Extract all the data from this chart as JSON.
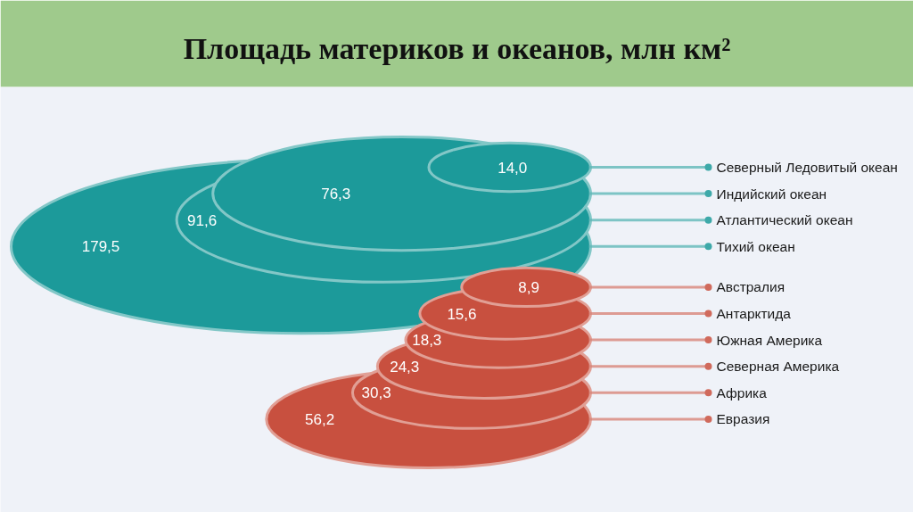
{
  "chart_data": {
    "type": "other",
    "title": "Площадь материков и океанов, млн км²",
    "categories": [
      "Северный Ледовитый океан",
      "Индийский океан",
      "Атлантический океан",
      "Тихий океан",
      "Австралия",
      "Антарктида",
      "Южная Америка",
      "Северная Америка",
      "Африка",
      "Евразия"
    ],
    "series": [
      {
        "color": "#1c9a9a",
        "values": [
          14.0,
          76.3,
          91.6,
          179.5,
          null,
          null,
          null,
          null,
          null,
          null
        ],
        "value_labels": [
          "14,0",
          "76,3",
          "91,6",
          "179,5",
          null,
          null,
          null,
          null,
          null,
          null
        ]
      },
      {
        "color": "#c8503f",
        "values": [
          null,
          null,
          null,
          null,
          8.9,
          15.6,
          18.3,
          24.3,
          30.3,
          56.2
        ],
        "value_labels": [
          null,
          null,
          null,
          null,
          "8,9",
          "15,6",
          "18,3",
          "24,3",
          "30,3",
          "56,2"
        ]
      }
    ]
  }
}
